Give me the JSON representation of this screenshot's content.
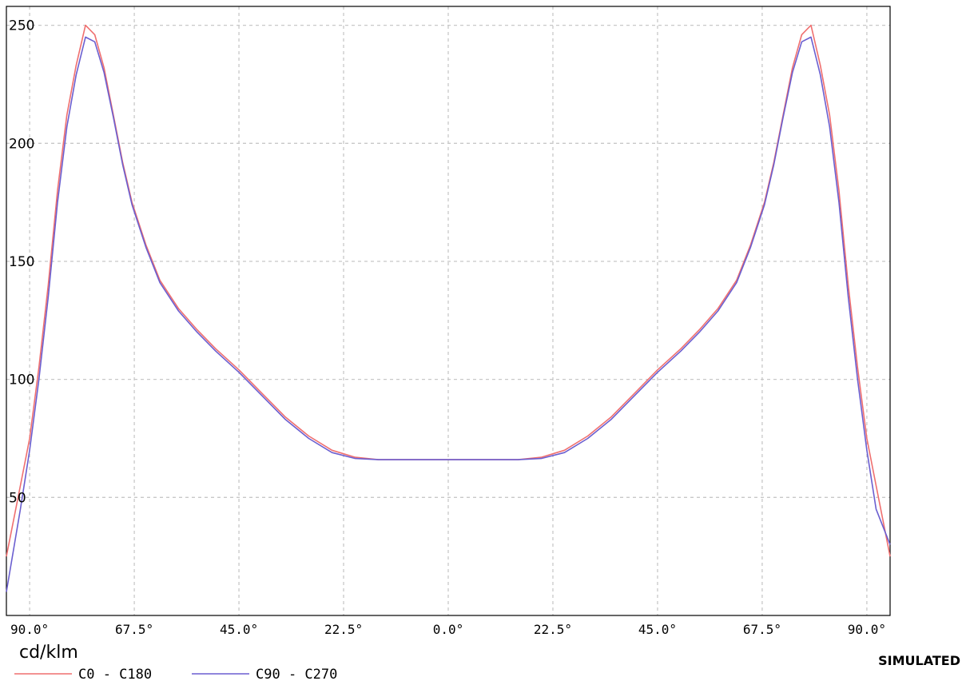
{
  "chart_data": {
    "type": "line",
    "unit_label": "cd/klm",
    "status_label": "SIMULATED",
    "xlim": [
      -95,
      95
    ],
    "ylim": [
      0,
      258
    ],
    "grid": true,
    "legend_position": "bottom-left",
    "y_ticks": [
      {
        "value": 50,
        "label": "50"
      },
      {
        "value": 100,
        "label": "100"
      },
      {
        "value": 150,
        "label": "150"
      },
      {
        "value": 200,
        "label": "200"
      },
      {
        "value": 250,
        "label": "250"
      }
    ],
    "x_ticks": [
      {
        "value": -90,
        "label": "90.0°"
      },
      {
        "value": -67.5,
        "label": "67.5°"
      },
      {
        "value": -45,
        "label": "45.0°"
      },
      {
        "value": -22.5,
        "label": "22.5°"
      },
      {
        "value": 0,
        "label": "0.0°"
      },
      {
        "value": 22.5,
        "label": "22.5°"
      },
      {
        "value": 45,
        "label": "45.0°"
      },
      {
        "value": 67.5,
        "label": "67.5°"
      },
      {
        "value": 90,
        "label": "90.0°"
      }
    ],
    "series": [
      {
        "name": "C0 - C180",
        "color": "#ef6f6f",
        "points": [
          [
            -95,
            25
          ],
          [
            -92,
            55
          ],
          [
            -90,
            75
          ],
          [
            -88,
            105
          ],
          [
            -86,
            140
          ],
          [
            -84,
            180
          ],
          [
            -82,
            212
          ],
          [
            -80,
            233
          ],
          [
            -78,
            250
          ],
          [
            -76,
            246
          ],
          [
            -74,
            232
          ],
          [
            -72,
            212
          ],
          [
            -70,
            192
          ],
          [
            -68,
            175
          ],
          [
            -65,
            157
          ],
          [
            -62,
            142
          ],
          [
            -58,
            130
          ],
          [
            -54,
            121
          ],
          [
            -50,
            113
          ],
          [
            -45,
            104
          ],
          [
            -40,
            94
          ],
          [
            -35,
            84
          ],
          [
            -30,
            76
          ],
          [
            -25,
            70
          ],
          [
            -20,
            67
          ],
          [
            -15,
            66
          ],
          [
            -10,
            66
          ],
          [
            -5,
            66
          ],
          [
            0,
            66
          ],
          [
            5,
            66
          ],
          [
            10,
            66
          ],
          [
            15,
            66
          ],
          [
            20,
            67
          ],
          [
            25,
            70
          ],
          [
            30,
            76
          ],
          [
            35,
            84
          ],
          [
            40,
            94
          ],
          [
            45,
            104
          ],
          [
            50,
            113
          ],
          [
            54,
            121
          ],
          [
            58,
            130
          ],
          [
            62,
            142
          ],
          [
            65,
            157
          ],
          [
            68,
            175
          ],
          [
            70,
            192
          ],
          [
            72,
            212
          ],
          [
            74,
            232
          ],
          [
            76,
            246
          ],
          [
            78,
            250
          ],
          [
            80,
            233
          ],
          [
            82,
            212
          ],
          [
            84,
            180
          ],
          [
            86,
            140
          ],
          [
            88,
            105
          ],
          [
            90,
            75
          ],
          [
            92,
            55
          ],
          [
            95,
            25
          ]
        ]
      },
      {
        "name": "C90 - C270",
        "color": "#6b5fd0",
        "points": [
          [
            -95,
            10
          ],
          [
            -92,
            45
          ],
          [
            -90,
            70
          ],
          [
            -88,
            100
          ],
          [
            -86,
            135
          ],
          [
            -84,
            175
          ],
          [
            -82,
            207
          ],
          [
            -80,
            229
          ],
          [
            -78,
            245
          ],
          [
            -76,
            243
          ],
          [
            -74,
            230
          ],
          [
            -72,
            211
          ],
          [
            -70,
            191
          ],
          [
            -68,
            174
          ],
          [
            -65,
            156
          ],
          [
            -62,
            141
          ],
          [
            -58,
            129
          ],
          [
            -54,
            120
          ],
          [
            -50,
            112
          ],
          [
            -45,
            103
          ],
          [
            -40,
            93
          ],
          [
            -35,
            83
          ],
          [
            -30,
            75
          ],
          [
            -25,
            69
          ],
          [
            -20,
            66.5
          ],
          [
            -15,
            66
          ],
          [
            -10,
            66
          ],
          [
            -5,
            66
          ],
          [
            0,
            66
          ],
          [
            5,
            66
          ],
          [
            10,
            66
          ],
          [
            15,
            66
          ],
          [
            20,
            66.5
          ],
          [
            25,
            69
          ],
          [
            30,
            75
          ],
          [
            35,
            83
          ],
          [
            40,
            93
          ],
          [
            45,
            103
          ],
          [
            50,
            112
          ],
          [
            54,
            120
          ],
          [
            58,
            129
          ],
          [
            62,
            141
          ],
          [
            65,
            156
          ],
          [
            68,
            174
          ],
          [
            70,
            191
          ],
          [
            72,
            211
          ],
          [
            74,
            230
          ],
          [
            76,
            243
          ],
          [
            78,
            245
          ],
          [
            80,
            229
          ],
          [
            82,
            207
          ],
          [
            84,
            175
          ],
          [
            86,
            135
          ],
          [
            88,
            100
          ],
          [
            90,
            70
          ],
          [
            92,
            45
          ],
          [
            95,
            30
          ]
        ]
      }
    ]
  }
}
